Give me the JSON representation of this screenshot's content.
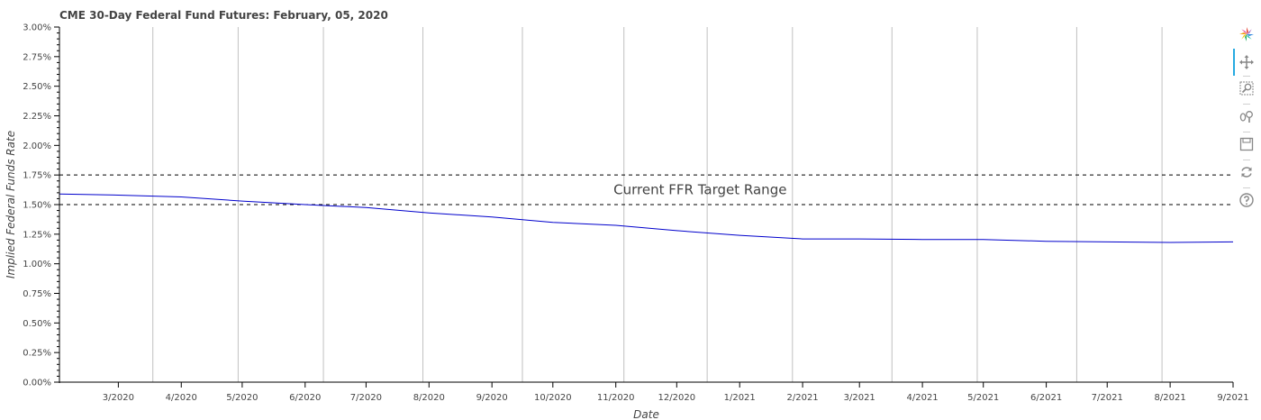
{
  "colors": {
    "series": "#0000cc",
    "ffr_lines": "#000000",
    "vgrid": "#c0c0c0",
    "text": "#444444"
  },
  "toolbar": {
    "tools": [
      {
        "icon": "bokeh-logo-icon",
        "label": "Bokeh"
      },
      {
        "icon": "pan-icon",
        "label": "Pan"
      },
      {
        "icon": "box-zoom-icon",
        "label": "Box Zoom"
      },
      {
        "icon": "wheel-zoom-icon",
        "label": "Wheel Zoom"
      },
      {
        "icon": "save-icon",
        "label": "Save"
      },
      {
        "icon": "reset-icon",
        "label": "Reset"
      },
      {
        "icon": "help-icon",
        "label": "Help"
      }
    ]
  },
  "chart_data": {
    "type": "line",
    "title": "CME 30-Day Federal Fund Futures: February, 05, 2020",
    "xlabel": "Date",
    "ylabel": "Implied Federal Funds Rate",
    "ylim": [
      0,
      3.0
    ],
    "yticks": [
      "0.00%",
      "0.25%",
      "0.50%",
      "0.75%",
      "1.00%",
      "1.25%",
      "1.50%",
      "1.75%",
      "2.00%",
      "2.25%",
      "2.50%",
      "2.75%",
      "3.00%"
    ],
    "xlim": [
      "2020-02-01",
      "2021-09-01"
    ],
    "xtick_labels": [
      {
        "date": "2020-03-01",
        "label": "3/2020"
      },
      {
        "date": "2020-04-01",
        "label": "4/2020"
      },
      {
        "date": "2020-05-01",
        "label": "5/2020"
      },
      {
        "date": "2020-06-01",
        "label": "6/2020"
      },
      {
        "date": "2020-07-01",
        "label": "7/2020"
      },
      {
        "date": "2020-08-01",
        "label": "8/2020"
      },
      {
        "date": "2020-09-01",
        "label": "9/2020"
      },
      {
        "date": "2020-10-01",
        "label": "10/2020"
      },
      {
        "date": "2020-11-01",
        "label": "11/2020"
      },
      {
        "date": "2020-12-01",
        "label": "12/2020"
      },
      {
        "date": "2021-01-01",
        "label": "1/2021"
      },
      {
        "date": "2021-02-01",
        "label": "2/2021"
      },
      {
        "date": "2021-03-01",
        "label": "3/2021"
      },
      {
        "date": "2021-04-01",
        "label": "4/2021"
      },
      {
        "date": "2021-05-01",
        "label": "5/2021"
      },
      {
        "date": "2021-06-01",
        "label": "6/2021"
      },
      {
        "date": "2021-07-01",
        "label": "7/2021"
      },
      {
        "date": "2021-08-01",
        "label": "8/2021"
      },
      {
        "date": "2021-09-01",
        "label": "9/2021"
      }
    ],
    "vertical_lines": [
      "2020-03-18",
      "2020-04-29",
      "2020-06-10",
      "2020-07-29",
      "2020-09-16",
      "2020-11-05",
      "2020-12-16",
      "2021-01-27",
      "2021-03-17",
      "2021-04-28",
      "2021-06-16",
      "2021-07-28"
    ],
    "x": [
      "2020-02-01",
      "2020-03-01",
      "2020-04-01",
      "2020-05-01",
      "2020-06-01",
      "2020-07-01",
      "2020-08-01",
      "2020-09-01",
      "2020-10-01",
      "2020-11-01",
      "2020-12-01",
      "2021-01-01",
      "2021-02-01",
      "2021-03-01",
      "2021-04-01",
      "2021-05-01",
      "2021-06-01",
      "2021-07-01",
      "2021-08-01",
      "2021-09-01"
    ],
    "y": [
      1.59,
      1.58,
      1.565,
      1.53,
      1.5,
      1.475,
      1.43,
      1.395,
      1.35,
      1.325,
      1.28,
      1.24,
      1.21,
      1.21,
      1.205,
      1.205,
      1.19,
      1.185,
      1.18,
      1.185
    ],
    "hlines": [
      1.75,
      1.5
    ],
    "annotation": {
      "text": "Current FFR Target Range",
      "x": "2020-12-01",
      "y": 1.625
    },
    "grid": "vertical lines only"
  }
}
